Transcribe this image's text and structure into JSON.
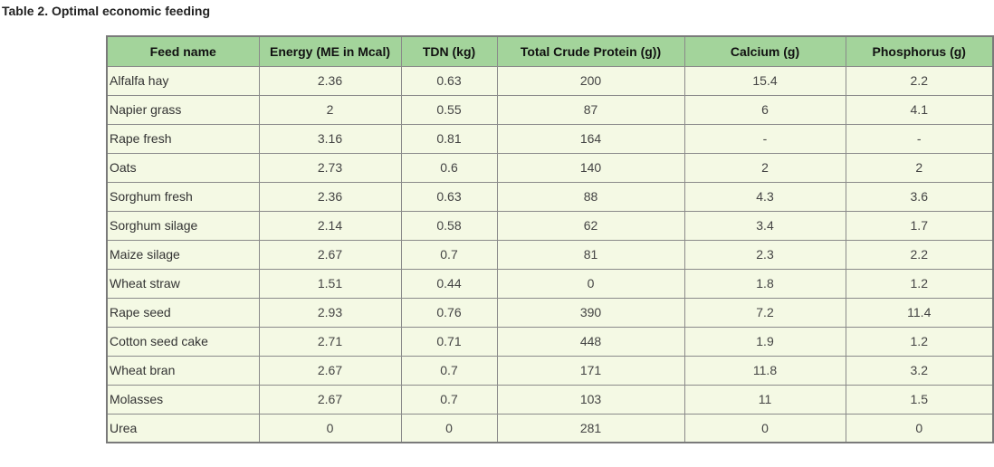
{
  "caption": "Table 2. Optimal economic feeding",
  "table": {
    "headers": [
      "Feed name",
      "Energy (ME in  Mcal)",
      "TDN (kg)",
      "Total Crude Protein (g))",
      "Calcium (g)",
      "Phosphorus (g)"
    ],
    "rows": [
      [
        "Alfalfa hay",
        "2.36",
        "0.63",
        "200",
        "15.4",
        "2.2"
      ],
      [
        "Napier grass",
        "2",
        "0.55",
        "87",
        "6",
        "4.1"
      ],
      [
        "Rape fresh",
        "3.16",
        "0.81",
        "164",
        "-",
        "-"
      ],
      [
        "Oats",
        "2.73",
        "0.6",
        "140",
        "2",
        "2"
      ],
      [
        "Sorghum fresh",
        "2.36",
        "0.63",
        "88",
        "4.3",
        "3.6"
      ],
      [
        "Sorghum silage",
        "2.14",
        "0.58",
        "62",
        "3.4",
        "1.7"
      ],
      [
        "Maize silage",
        "2.67",
        "0.7",
        "81",
        "2.3",
        "2.2"
      ],
      [
        "Wheat straw",
        "1.51",
        "0.44",
        "0",
        "1.8",
        "1.2"
      ],
      [
        "Rape seed",
        "2.93",
        "0.76",
        "390",
        "7.2",
        "11.4"
      ],
      [
        "Cotton seed cake",
        "2.71",
        "0.71",
        "448",
        "1.9",
        "1.2"
      ],
      [
        "Wheat bran",
        "2.67",
        "0.7",
        "171",
        "11.8",
        "3.2"
      ],
      [
        "Molasses",
        "2.67",
        "0.7",
        "103",
        "11",
        "1.5"
      ],
      [
        "Urea",
        "0",
        "0",
        "281",
        "0",
        "0"
      ]
    ]
  },
  "colors": {
    "header_background": "#a3d49b",
    "cell_background": "#f4f9e4",
    "border": "#8a8a8a"
  }
}
